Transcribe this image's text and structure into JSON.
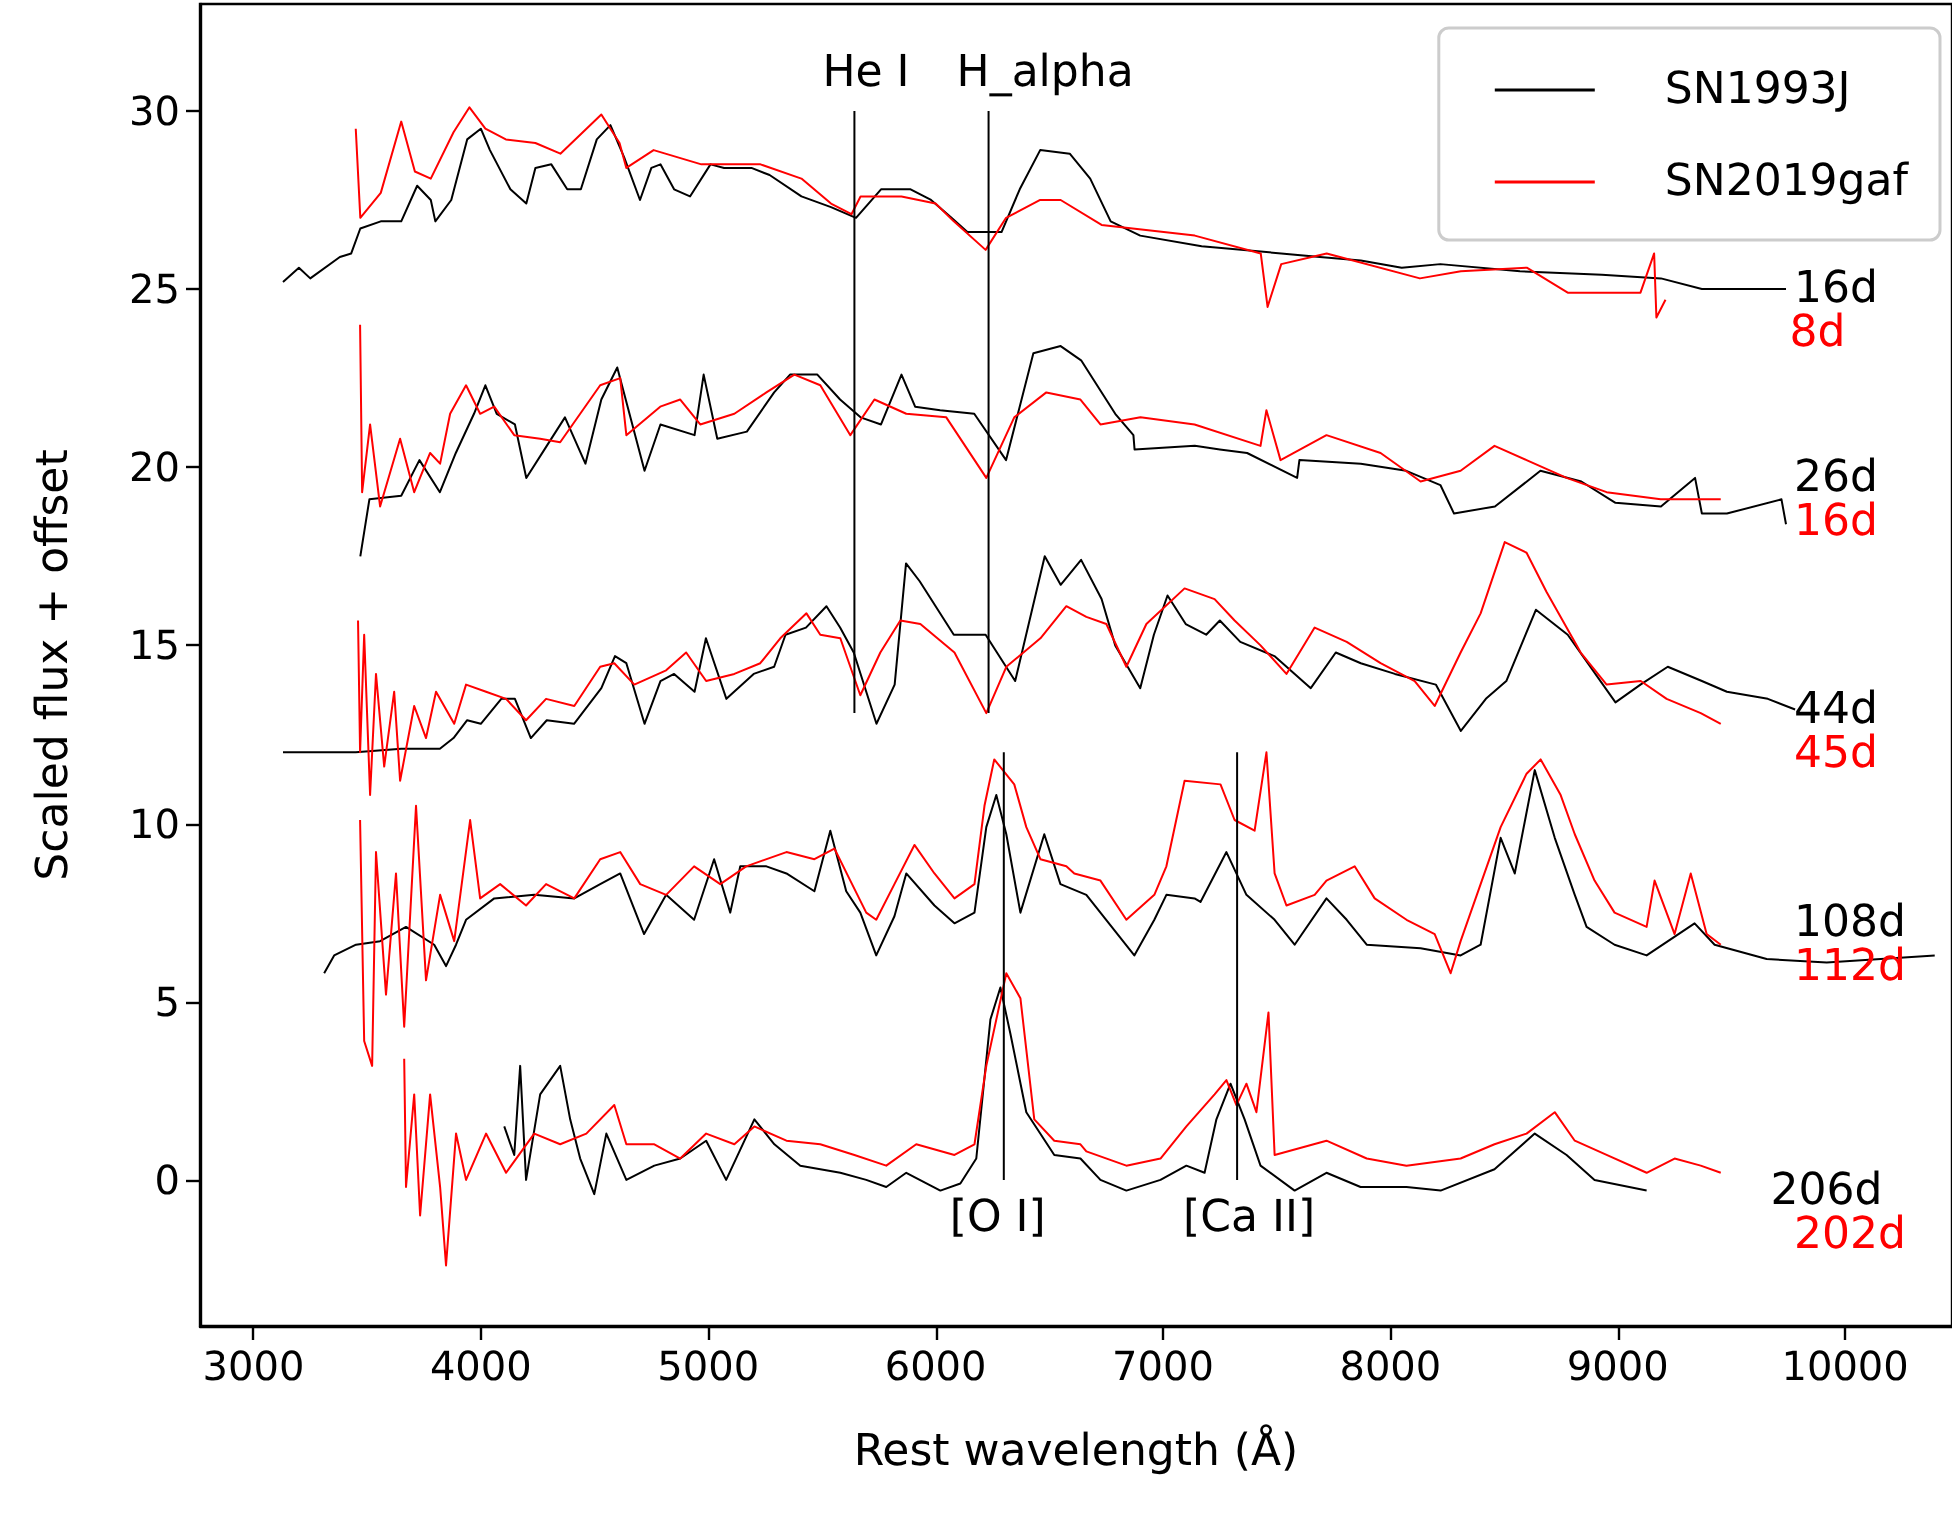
{
  "chart_data": {
    "type": "line",
    "xlabel": "Rest wavelength (Å)",
    "ylabel": "Scaled flux + offset",
    "xlim": [
      2765,
      10470
    ],
    "xticks": [
      3000,
      4000,
      5000,
      6000,
      7000,
      8000,
      9000,
      10000
    ],
    "ylim": [
      -4.1,
      33
    ],
    "yticks": [
      0,
      5,
      10,
      15,
      20,
      25,
      30
    ],
    "grid": false,
    "legend": "top right",
    "series": [
      {
        "name": "SN1993J",
        "color": "#000000",
        "x": [
          3130,
          3200,
          3250,
          3380,
          3430,
          3470,
          3560,
          3650,
          3720,
          3780,
          3800,
          3870,
          3940,
          4000,
          4040,
          4130,
          4200,
          4240,
          4310,
          4380,
          4440,
          4510,
          4570,
          4630,
          4700,
          4750,
          4790,
          4850,
          4920,
          5010,
          5070,
          5190,
          5270,
          5410,
          5540,
          5650,
          5760,
          5890,
          5980,
          6070,
          6140,
          6290,
          6370,
          6460,
          6590,
          6680,
          6770,
          6900,
          7170,
          7520,
          7690,
          7870,
          8050,
          8220,
          8570,
          8930,
          9190,
          9370,
          9540,
          9740
        ],
        "values": [
          25.2,
          25.6,
          25.3,
          25.9,
          26.0,
          26.7,
          26.9,
          26.9,
          27.9,
          27.5,
          26.9,
          27.5,
          29.2,
          29.5,
          28.9,
          27.8,
          27.4,
          28.4,
          28.5,
          27.8,
          27.8,
          29.2,
          29.6,
          28.7,
          27.5,
          28.4,
          28.5,
          27.8,
          27.6,
          28.5,
          28.4,
          28.4,
          28.2,
          27.6,
          27.3,
          27.0,
          27.8,
          27.8,
          27.5,
          27.0,
          26.6,
          26.6,
          27.8,
          28.9,
          28.8,
          28.1,
          26.9,
          26.5,
          26.2,
          26.0,
          25.9,
          25.8,
          25.6,
          25.7,
          25.5,
          25.4,
          25.3,
          25.0,
          25.0,
          25.0
        ]
      },
      {
        "name": "SN2019gaf",
        "color": "#ff0000",
        "x": [
          3450,
          3470,
          3560,
          3650,
          3710,
          3780,
          3880,
          3950,
          4020,
          4110,
          4240,
          4350,
          4530,
          4610,
          4640,
          4760,
          4970,
          5230,
          5410,
          5540,
          5630,
          5670,
          5850,
          6000,
          6080,
          6220,
          6310,
          6460,
          6550,
          6730,
          7140,
          7430,
          7460,
          7520,
          7720,
          8130,
          8310,
          8600,
          8780,
          9100,
          9160,
          9170,
          9210
        ],
        "values": [
          29.5,
          27.0,
          27.7,
          29.7,
          28.3,
          28.1,
          29.4,
          30.1,
          29.5,
          29.2,
          29.1,
          28.8,
          29.9,
          29.1,
          28.4,
          28.9,
          28.5,
          28.5,
          28.1,
          27.4,
          27.1,
          27.6,
          27.6,
          27.4,
          26.9,
          26.1,
          27.0,
          27.5,
          27.5,
          26.8,
          26.5,
          26.0,
          24.5,
          25.7,
          26.0,
          25.3,
          25.5,
          25.6,
          24.9,
          24.9,
          26.0,
          24.2,
          24.7
        ]
      },
      {
        "color": "#000000",
        "x": [
          3470,
          3510,
          3650,
          3730,
          3820,
          3890,
          3970,
          4020,
          4070,
          4150,
          4200,
          4290,
          4370,
          4460,
          4530,
          4600,
          4720,
          4790,
          4940,
          4980,
          5040,
          5170,
          5290,
          5360,
          5480,
          5580,
          5670,
          5760,
          5850,
          5910,
          6020,
          6170,
          6310,
          6430,
          6550,
          6640,
          6790,
          6870,
          6875,
          7140,
          7250,
          7370,
          7590,
          7600,
          7870,
          8070,
          8220,
          8280,
          8460,
          8660,
          8840,
          8990,
          9190,
          9340,
          9370,
          9480,
          9720,
          9740
        ],
        "values": [
          17.5,
          19.1,
          19.2,
          20.2,
          19.3,
          20.4,
          21.5,
          22.3,
          21.5,
          21.2,
          19.7,
          20.6,
          21.4,
          20.1,
          21.9,
          22.8,
          19.9,
          21.2,
          20.9,
          22.6,
          20.8,
          21.0,
          22.1,
          22.6,
          22.6,
          21.9,
          21.4,
          21.2,
          22.6,
          21.7,
          21.6,
          21.5,
          20.2,
          23.2,
          23.4,
          23.0,
          21.5,
          20.9,
          20.5,
          20.6,
          20.5,
          20.4,
          19.7,
          20.2,
          20.1,
          19.9,
          19.5,
          18.7,
          18.9,
          19.9,
          19.6,
          19.0,
          18.9,
          19.7,
          18.7,
          18.7,
          19.1,
          18.4
        ]
      },
      {
        "color": "#ff0000",
        "x": [
          3469,
          3478,
          3513,
          3557,
          3645,
          3707,
          3777,
          3821,
          3865,
          3935,
          3997,
          4059,
          4147,
          4261,
          4349,
          4437,
          4525,
          4613,
          4640,
          4789,
          4877,
          4965,
          5115,
          5256,
          5379,
          5493,
          5625,
          5731,
          5871,
          6047,
          6223,
          6346,
          6487,
          6637,
          6725,
          6901,
          7139,
          7429,
          7455,
          7517,
          7719,
          7957,
          8133,
          8309,
          8458,
          8599,
          8775,
          8951,
          9189,
          9453
        ],
        "values": [
          24.0,
          19.3,
          21.2,
          18.9,
          20.8,
          19.3,
          20.4,
          20.1,
          21.5,
          22.3,
          21.5,
          21.7,
          20.9,
          20.8,
          20.7,
          21.5,
          22.3,
          22.5,
          20.9,
          21.7,
          21.9,
          21.2,
          21.5,
          22.1,
          22.6,
          22.3,
          20.9,
          21.9,
          21.5,
          21.4,
          19.7,
          21.4,
          22.1,
          21.9,
          21.2,
          21.4,
          21.2,
          20.6,
          21.6,
          20.2,
          20.9,
          20.4,
          19.6,
          19.9,
          20.6,
          20.2,
          19.7,
          19.3,
          19.1,
          19.1
        ]
      },
      {
        "color": "#000000",
        "x": [
          3130,
          3360,
          3450,
          3650,
          3820,
          3880,
          3940,
          4000,
          4090,
          4150,
          4220,
          4290,
          4410,
          4530,
          4590,
          4640,
          4720,
          4790,
          4850,
          4940,
          4990,
          5080,
          5200,
          5290,
          5340,
          5430,
          5520,
          5580,
          5640,
          5740,
          5820,
          5870,
          5930,
          6080,
          6220,
          6350,
          6480,
          6550,
          6640,
          6730,
          6790,
          6900,
          6960,
          7020,
          7100,
          7190,
          7250,
          7340,
          7490,
          7650,
          7760,
          7870,
          8020,
          8200,
          8310,
          8420,
          8510,
          8640,
          8780,
          8990,
          9100,
          9220,
          9370,
          9480,
          9660,
          9780
        ],
        "values": [
          12.0,
          12.0,
          12.0,
          12.1,
          12.1,
          12.4,
          12.9,
          12.8,
          13.5,
          13.5,
          12.4,
          12.9,
          12.8,
          13.8,
          14.7,
          14.5,
          12.8,
          14.0,
          14.2,
          13.7,
          15.2,
          13.5,
          14.2,
          14.4,
          15.3,
          15.5,
          16.1,
          15.5,
          14.8,
          12.8,
          13.9,
          17.3,
          16.8,
          15.3,
          15.3,
          14.0,
          17.5,
          16.7,
          17.4,
          16.3,
          15.0,
          13.8,
          15.3,
          16.4,
          15.6,
          15.3,
          15.7,
          15.1,
          14.7,
          13.8,
          14.8,
          14.5,
          14.2,
          13.9,
          12.6,
          13.5,
          14.0,
          16.0,
          15.3,
          13.4,
          13.9,
          14.4,
          14.0,
          13.7,
          13.5,
          13.2
        ]
      },
      {
        "color": "#ff0000",
        "x": [
          3460,
          3469,
          3487,
          3513,
          3539,
          3575,
          3619,
          3645,
          3707,
          3759,
          3803,
          3883,
          3935,
          4023,
          4111,
          4199,
          4287,
          4411,
          4525,
          4587,
          4675,
          4815,
          4903,
          4991,
          5115,
          5229,
          5317,
          5432,
          5493,
          5581,
          5669,
          5757,
          5845,
          5933,
          6083,
          6223,
          6311,
          6461,
          6575,
          6663,
          6751,
          6839,
          6927,
          7095,
          7227,
          7315,
          7429,
          7543,
          7667,
          7808,
          7957,
          8107,
          8195,
          8309,
          8397,
          8503,
          8599,
          8687,
          8837,
          8951,
          9101,
          9215,
          9365,
          9453
        ],
        "values": [
          15.7,
          12.0,
          15.3,
          10.8,
          14.2,
          11.6,
          13.7,
          11.2,
          13.3,
          12.4,
          13.7,
          12.8,
          13.9,
          13.7,
          13.5,
          12.9,
          13.5,
          13.3,
          14.4,
          14.5,
          13.9,
          14.3,
          14.8,
          14.0,
          14.2,
          14.5,
          15.2,
          15.9,
          15.3,
          15.2,
          13.6,
          14.8,
          15.7,
          15.6,
          14.8,
          13.1,
          14.4,
          15.2,
          16.1,
          15.8,
          15.6,
          14.4,
          15.6,
          16.6,
          16.3,
          15.7,
          15.0,
          14.2,
          15.5,
          15.1,
          14.5,
          14.0,
          13.3,
          14.8,
          15.9,
          17.9,
          17.6,
          16.5,
          14.8,
          13.9,
          14.0,
          13.5,
          13.1,
          12.8
        ]
      },
      {
        "color": "#000000",
        "x": [
          3311,
          3355,
          3451,
          3557,
          3671,
          3795,
          3847,
          3891,
          3935,
          4059,
          4235,
          4411,
          4525,
          4613,
          4718,
          4815,
          4938,
          5026,
          5097,
          5141,
          5256,
          5344,
          5467,
          5537,
          5607,
          5669,
          5739,
          5819,
          5871,
          5995,
          6083,
          6171,
          6223,
          6267,
          6311,
          6373,
          6478,
          6549,
          6663,
          6874,
          6962,
          7015,
          7139,
          7165,
          7279,
          7367,
          7491,
          7579,
          7719,
          7808,
          7896,
          8133,
          8309,
          8397,
          8485,
          8547,
          8635,
          8723,
          8811,
          8863,
          8986,
          9127,
          9338,
          9426,
          9655,
          9919,
          10394
        ],
        "values": [
          5.8,
          6.3,
          6.6,
          6.7,
          7.1,
          6.6,
          6.0,
          6.6,
          7.3,
          7.9,
          8.0,
          7.9,
          8.3,
          8.6,
          6.9,
          8.0,
          7.3,
          9.0,
          7.5,
          8.8,
          8.8,
          8.6,
          8.1,
          9.8,
          8.1,
          7.5,
          6.3,
          7.4,
          8.6,
          7.7,
          7.2,
          7.5,
          9.9,
          10.8,
          9.7,
          7.5,
          9.7,
          8.3,
          8.0,
          6.3,
          7.3,
          8.0,
          7.9,
          7.8,
          9.2,
          8.0,
          7.3,
          6.6,
          7.9,
          7.3,
          6.6,
          6.5,
          6.3,
          6.6,
          9.6,
          8.6,
          11.5,
          9.6,
          8.0,
          7.1,
          6.6,
          6.3,
          7.2,
          6.6,
          6.2,
          6.1,
          6.3
        ]
      },
      {
        "color": "#ff0000",
        "x": [
          3469,
          3487,
          3522,
          3539,
          3583,
          3627,
          3663,
          3715,
          3759,
          3821,
          3883,
          3953,
          3997,
          4085,
          4199,
          4287,
          4411,
          4525,
          4613,
          4701,
          4815,
          4938,
          5053,
          5167,
          5344,
          5467,
          5555,
          5625,
          5695,
          5739,
          5819,
          5907,
          5995,
          6083,
          6171,
          6215,
          6258,
          6346,
          6399,
          6461,
          6575,
          6610,
          6725,
          6839,
          6962,
          7015,
          7095,
          7253,
          7315,
          7403,
          7455,
          7491,
          7543,
          7667,
          7719,
          7843,
          7931,
          8071,
          8195,
          8265,
          8309,
          8397,
          8485,
          8599,
          8661,
          8749,
          8811,
          8898,
          8986,
          9127,
          9162,
          9250,
          9321,
          9391,
          9453
        ],
        "values": [
          10.1,
          3.9,
          3.2,
          9.2,
          5.2,
          8.6,
          4.3,
          10.5,
          5.6,
          8.0,
          6.7,
          10.1,
          7.9,
          8.3,
          7.7,
          8.3,
          7.9,
          9.0,
          9.2,
          8.3,
          8.0,
          8.8,
          8.3,
          8.8,
          9.2,
          9.0,
          9.3,
          8.4,
          7.5,
          7.3,
          8.3,
          9.4,
          8.6,
          7.9,
          8.3,
          10.5,
          11.8,
          11.1,
          9.9,
          9.0,
          8.8,
          8.6,
          8.4,
          7.3,
          8.0,
          8.8,
          11.2,
          11.1,
          10.1,
          9.8,
          12.0,
          8.6,
          7.7,
          8.0,
          8.4,
          8.8,
          7.9,
          7.3,
          6.9,
          5.8,
          6.7,
          8.3,
          9.9,
          11.4,
          11.8,
          10.8,
          9.7,
          8.4,
          7.5,
          7.1,
          8.4,
          6.9,
          8.6,
          6.9,
          6.6
        ]
      },
      {
        "color": "#000000",
        "x": [
          4103,
          4147,
          4173,
          4199,
          4261,
          4349,
          4393,
          4437,
          4499,
          4552,
          4640,
          4763,
          4877,
          4991,
          5079,
          5203,
          5291,
          5405,
          5581,
          5695,
          5783,
          5871,
          6021,
          6109,
          6179,
          6241,
          6285,
          6329,
          6399,
          6522,
          6637,
          6725,
          6839,
          6989,
          7103,
          7183,
          7235,
          7297,
          7359,
          7429,
          7579,
          7719,
          7869,
          8071,
          8221,
          8458,
          8635,
          8775,
          8898,
          9127
        ],
        "values": [
          1.5,
          0.7,
          3.2,
          0.0,
          2.4,
          3.2,
          1.7,
          0.6,
          -0.4,
          1.3,
          0.0,
          0.4,
          0.6,
          1.1,
          0.0,
          1.7,
          1.0,
          0.4,
          0.2,
          0.0,
          -0.2,
          0.2,
          -0.3,
          -0.1,
          0.6,
          4.5,
          5.4,
          4.1,
          1.9,
          0.7,
          0.6,
          0.0,
          -0.3,
          0.0,
          0.4,
          0.2,
          1.7,
          2.7,
          1.7,
          0.4,
          -0.3,
          0.2,
          -0.2,
          -0.2,
          -0.3,
          0.3,
          1.3,
          0.7,
          0.0,
          -0.3
        ]
      },
      {
        "color": "#ff0000",
        "x": [
          3663,
          3671,
          3707,
          3733,
          3777,
          3821,
          3847,
          3891,
          3935,
          4023,
          4111,
          4235,
          4349,
          4464,
          4587,
          4640,
          4763,
          4877,
          4991,
          5115,
          5203,
          5344,
          5493,
          5643,
          5783,
          5915,
          6083,
          6171,
          6223,
          6311,
          6373,
          6434,
          6522,
          6637,
          6663,
          6839,
          6989,
          7103,
          7227,
          7279,
          7323,
          7367,
          7411,
          7464,
          7491,
          7719,
          7896,
          8071,
          8309,
          8458,
          8599,
          8723,
          8811,
          8951,
          9127,
          9250,
          9365,
          9453
        ],
        "values": [
          3.4,
          -0.2,
          2.4,
          -1.0,
          2.4,
          -0.2,
          -2.4,
          1.3,
          0.0,
          1.3,
          0.2,
          1.3,
          1.0,
          1.3,
          2.1,
          1.0,
          1.0,
          0.6,
          1.3,
          1.0,
          1.5,
          1.1,
          1.0,
          0.7,
          0.4,
          1.0,
          0.7,
          1.0,
          3.2,
          5.8,
          5.1,
          1.7,
          1.1,
          1.0,
          0.8,
          0.4,
          0.6,
          1.5,
          2.4,
          2.8,
          2.1,
          2.7,
          1.9,
          4.7,
          0.7,
          1.1,
          0.6,
          0.4,
          0.6,
          1.0,
          1.3,
          1.9,
          1.1,
          0.7,
          0.2,
          0.6,
          0.4,
          0.2
        ]
      },
      {
        "color": "#000000",
        "x": [
          5643,
          5643
        ],
        "values": [
          13.1,
          30.0
        ]
      },
      {
        "color": "#000000",
        "x": [
          6233,
          6233
        ],
        "values": [
          13.1,
          30.0
        ]
      },
      {
        "color": "#000000",
        "x": [
          6300,
          6300
        ],
        "values": [
          0.0,
          12.0
        ]
      },
      {
        "color": "#000000",
        "x": [
          7326,
          7326
        ],
        "values": [
          0.0,
          12.0
        ]
      }
    ],
    "annotations": [
      {
        "text": "He I",
        "x": 5643,
        "y": 30.0
      },
      {
        "text": "H_alpha",
        "x": 6233,
        "y": 30.0
      },
      {
        "text": "[O I]",
        "x": 6300,
        "y": 0.0
      },
      {
        "text": "[Ca II]",
        "x": 7326,
        "y": 0.0
      },
      {
        "text": "16d",
        "x": 9740,
        "y": 25.0
      },
      {
        "text": "8d",
        "x": 9210,
        "y": 24.7
      },
      {
        "text": "26d",
        "x": 9340,
        "y": 19.7
      },
      {
        "text": "16d",
        "x": 9453,
        "y": 19.1
      },
      {
        "text": "44d",
        "x": 9780,
        "y": 13.2
      },
      {
        "text": "45d",
        "x": 9453,
        "y": 12.8
      },
      {
        "text": "108d",
        "x": 9338,
        "y": 7.2
      },
      {
        "text": "112d",
        "x": 9453,
        "y": 6.6
      },
      {
        "text": "206d",
        "x": 9127,
        "y": -0.3
      },
      {
        "text": "202d",
        "x": 9453,
        "y": 0.2
      }
    ]
  }
}
